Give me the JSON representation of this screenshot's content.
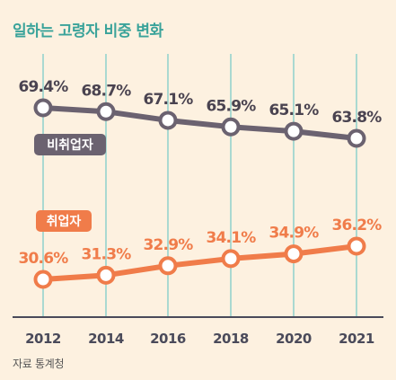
{
  "title": "일하는 고령자 비중 변화",
  "source": "자료 통계청",
  "colors": {
    "background": "#fdf1e0",
    "title": "#3aa39a",
    "grid": "#8fd1cc",
    "axis": "#4a4a5a",
    "non_employed": "#6b6270",
    "employed": "#f07c4a"
  },
  "chart_data": {
    "type": "line",
    "title": "일하는 고령자 비중 변화",
    "x": [
      "2012",
      "2014",
      "2016",
      "2018",
      "2020",
      "2021"
    ],
    "grid": "vertical",
    "series": [
      {
        "name": "비취업자",
        "values": [
          69.4,
          68.7,
          67.1,
          65.9,
          65.1,
          63.8
        ],
        "labels": [
          "69.4%",
          "68.7%",
          "67.1%",
          "65.9%",
          "65.1%",
          "63.8%"
        ]
      },
      {
        "name": "취업자",
        "values": [
          30.6,
          31.3,
          32.9,
          34.1,
          34.9,
          36.2
        ],
        "labels": [
          "30.6%",
          "31.3%",
          "32.9%",
          "34.1%",
          "34.9%",
          "36.2%"
        ]
      }
    ]
  }
}
